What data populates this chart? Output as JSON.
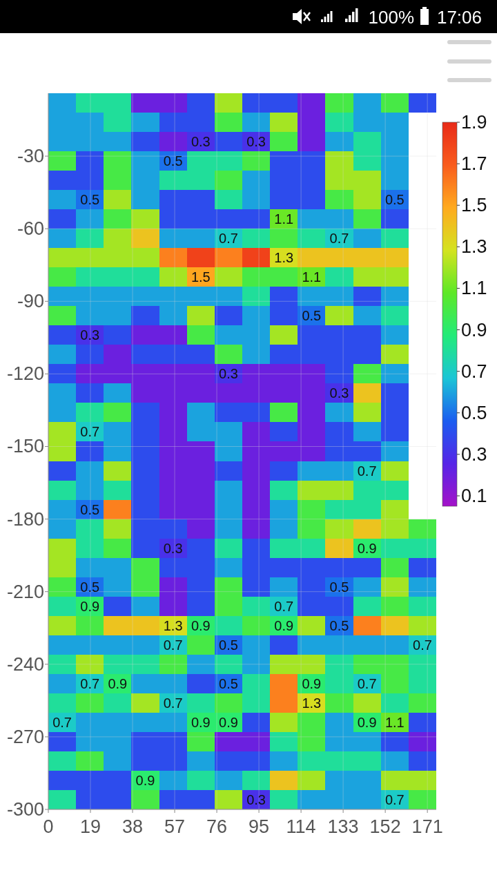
{
  "chart_data": {
    "type": "heatmap",
    "xlim": [
      0,
      175
    ],
    "xticks": [
      0,
      19,
      38,
      57,
      76,
      95,
      114,
      133,
      152,
      171
    ],
    "ylim": [
      -300,
      -4
    ],
    "yticks": [
      -30,
      -60,
      -90,
      -120,
      -150,
      -180,
      -210,
      -240,
      -270,
      -300
    ],
    "clim": [
      0.05,
      1.9
    ],
    "cticks": [
      0.1,
      0.3,
      0.5,
      0.7,
      0.9,
      1.1,
      1.3,
      1.5,
      1.7,
      1.9
    ],
    "colors": [
      "#a412c8",
      "#5625e7",
      "#1b5df0",
      "#1bc5d6",
      "#23eb79",
      "#5de827",
      "#d4e320",
      "#ffaa1f",
      "#f95c1d",
      "#e82a18"
    ],
    "grid": true,
    "cells": [
      [
        0.6,
        0.8,
        0.8,
        0.2,
        0.2,
        0.4,
        1.2,
        0.4,
        0.4,
        0.2,
        1.0,
        0.6,
        1.0,
        0.4
      ],
      [
        0.6,
        0.6,
        0.8,
        0.6,
        0.4,
        0.4,
        1.0,
        0.6,
        1.2,
        0.2,
        0.8,
        0.6,
        0.6,
        null
      ],
      [
        0.6,
        0.6,
        0.6,
        0.4,
        0.2,
        0.3,
        0.4,
        0.3,
        1.0,
        0.2,
        0.6,
        0.8,
        0.6,
        null
      ],
      [
        1.0,
        0.4,
        1.0,
        0.6,
        0.5,
        0.8,
        0.8,
        1.0,
        0.4,
        0.4,
        1.2,
        0.8,
        0.6,
        null
      ],
      [
        0.4,
        0.4,
        1.0,
        0.6,
        0.8,
        0.8,
        1.0,
        0.6,
        0.4,
        0.4,
        1.2,
        1.2,
        0.6,
        null
      ],
      [
        0.6,
        0.5,
        1.2,
        0.6,
        0.4,
        0.4,
        0.8,
        0.6,
        0.4,
        0.4,
        1.0,
        1.2,
        0.5,
        null
      ],
      [
        0.4,
        0.6,
        1.0,
        1.2,
        0.4,
        0.4,
        0.4,
        0.4,
        1.1,
        0.6,
        0.6,
        1.0,
        0.4,
        null
      ],
      [
        0.6,
        0.8,
        1.2,
        1.4,
        0.6,
        0.6,
        0.7,
        0.8,
        1.0,
        0.8,
        0.7,
        0.6,
        0.8,
        null
      ],
      [
        1.2,
        1.2,
        1.2,
        1.2,
        1.6,
        1.8,
        1.6,
        1.8,
        1.3,
        1.4,
        1.4,
        1.4,
        1.4,
        null
      ],
      [
        1.0,
        0.8,
        0.8,
        0.8,
        1.2,
        1.5,
        1.2,
        1.0,
        1.0,
        1.1,
        0.8,
        1.2,
        1.2,
        null
      ],
      [
        0.6,
        0.6,
        0.6,
        0.6,
        0.6,
        0.6,
        0.6,
        0.8,
        0.4,
        0.6,
        0.6,
        0.4,
        0.6,
        null
      ],
      [
        1.0,
        0.6,
        0.6,
        0.4,
        0.6,
        1.2,
        0.4,
        0.6,
        0.4,
        0.5,
        1.2,
        0.6,
        0.8,
        null
      ],
      [
        0.4,
        0.3,
        0.4,
        0.2,
        0.2,
        1.0,
        0.6,
        0.6,
        1.2,
        0.4,
        0.4,
        0.4,
        0.6,
        null
      ],
      [
        0.6,
        0.4,
        0.2,
        0.4,
        0.4,
        0.4,
        1.0,
        0.6,
        0.4,
        0.4,
        0.4,
        0.4,
        1.2,
        null
      ],
      [
        0.4,
        0.2,
        0.2,
        0.2,
        0.2,
        0.2,
        0.3,
        0.2,
        0.2,
        0.2,
        0.4,
        1.0,
        0.6,
        null
      ],
      [
        0.6,
        0.4,
        0.6,
        0.2,
        0.2,
        0.2,
        0.2,
        0.2,
        0.2,
        0.2,
        0.3,
        1.4,
        0.4,
        null
      ],
      [
        0.6,
        0.8,
        1.0,
        0.4,
        0.2,
        0.6,
        0.4,
        0.4,
        1.0,
        0.2,
        0.6,
        1.2,
        0.4,
        null
      ],
      [
        1.2,
        0.7,
        0.6,
        0.4,
        0.2,
        0.6,
        0.6,
        0.2,
        0.4,
        0.2,
        0.4,
        0.6,
        0.4,
        null
      ],
      [
        1.2,
        0.4,
        0.6,
        0.4,
        0.2,
        0.2,
        0.6,
        0.2,
        0.2,
        0.2,
        0.4,
        0.4,
        0.6,
        null
      ],
      [
        0.4,
        0.6,
        1.2,
        0.4,
        0.2,
        0.2,
        0.4,
        0.2,
        0.4,
        0.6,
        0.6,
        0.7,
        1.2,
        null
      ],
      [
        0.8,
        0.6,
        0.8,
        0.4,
        0.2,
        0.2,
        0.6,
        0.2,
        0.8,
        1.2,
        1.2,
        0.8,
        0.8,
        null
      ],
      [
        0.6,
        0.5,
        1.6,
        0.4,
        0.2,
        0.2,
        0.6,
        0.2,
        0.6,
        1.0,
        0.8,
        0.8,
        1.2,
        null
      ],
      [
        0.6,
        0.8,
        1.2,
        0.4,
        0.4,
        0.2,
        0.6,
        0.2,
        0.6,
        1.0,
        1.2,
        1.4,
        1.2,
        1.0
      ],
      [
        1.2,
        0.8,
        1.0,
        0.4,
        0.3,
        0.4,
        0.8,
        0.4,
        0.8,
        0.8,
        1.4,
        0.9,
        0.8,
        0.8
      ],
      [
        1.2,
        0.6,
        0.6,
        1.0,
        0.4,
        0.4,
        0.6,
        0.4,
        0.4,
        0.4,
        0.4,
        0.4,
        1.0,
        0.4
      ],
      [
        1.0,
        0.5,
        0.6,
        1.0,
        0.2,
        0.4,
        1.0,
        0.4,
        0.6,
        0.4,
        0.5,
        0.6,
        1.2,
        0.6
      ],
      [
        0.8,
        0.9,
        0.4,
        0.6,
        0.2,
        0.4,
        1.0,
        0.8,
        0.7,
        0.4,
        0.4,
        0.8,
        1.0,
        0.8
      ],
      [
        1.2,
        1.0,
        1.4,
        1.4,
        1.3,
        0.9,
        0.8,
        1.0,
        0.9,
        1.2,
        0.5,
        1.6,
        1.4,
        1.2
      ],
      [
        0.6,
        0.6,
        0.6,
        0.6,
        0.7,
        1.0,
        0.5,
        0.6,
        0.4,
        0.6,
        0.6,
        0.6,
        0.6,
        0.7
      ],
      [
        0.8,
        1.2,
        0.8,
        0.8,
        1.0,
        0.6,
        0.8,
        0.6,
        1.2,
        1.2,
        0.8,
        1.0,
        1.0,
        0.8
      ],
      [
        0.6,
        0.7,
        0.9,
        0.6,
        0.6,
        0.4,
        0.5,
        0.8,
        1.6,
        0.9,
        0.8,
        0.7,
        1.0,
        0.8
      ],
      [
        0.8,
        1.0,
        0.8,
        1.2,
        0.7,
        0.8,
        1.0,
        0.8,
        1.6,
        1.3,
        1.0,
        1.2,
        0.8,
        1.0
      ],
      [
        0.7,
        0.6,
        0.6,
        0.6,
        0.6,
        0.9,
        0.9,
        0.4,
        1.2,
        1.0,
        0.6,
        0.9,
        1.1,
        0.4
      ],
      [
        0.4,
        0.6,
        0.6,
        0.4,
        0.4,
        1.0,
        0.2,
        0.2,
        0.8,
        1.0,
        0.6,
        0.6,
        0.4,
        0.2
      ],
      [
        0.8,
        1.0,
        0.6,
        0.4,
        0.4,
        0.6,
        0.4,
        0.4,
        0.6,
        0.8,
        0.8,
        0.8,
        0.6,
        0.4
      ],
      [
        0.4,
        0.4,
        0.4,
        0.9,
        0.6,
        0.8,
        0.6,
        0.8,
        1.4,
        1.2,
        0.6,
        0.6,
        1.2,
        1.2
      ],
      [
        0.8,
        0.4,
        0.4,
        1.0,
        0.4,
        0.4,
        1.2,
        0.3,
        0.8,
        0.6,
        0.6,
        0.6,
        0.7,
        1.0
      ]
    ],
    "cell_labels": [
      [
        null,
        null,
        null,
        null,
        null,
        null,
        null,
        null,
        null,
        null,
        null,
        null,
        null,
        null
      ],
      [
        null,
        null,
        null,
        null,
        null,
        null,
        null,
        null,
        null,
        null,
        null,
        null,
        null,
        null
      ],
      [
        null,
        null,
        null,
        null,
        null,
        "0.3",
        null,
        "0.3",
        null,
        null,
        null,
        null,
        null,
        null
      ],
      [
        null,
        null,
        null,
        null,
        "0.5",
        null,
        null,
        null,
        null,
        null,
        null,
        null,
        null,
        null
      ],
      [
        null,
        null,
        null,
        null,
        null,
        null,
        null,
        null,
        null,
        null,
        null,
        null,
        null,
        null
      ],
      [
        null,
        "0.5",
        null,
        null,
        null,
        null,
        null,
        null,
        null,
        null,
        null,
        null,
        "0.5",
        null
      ],
      [
        null,
        null,
        null,
        null,
        null,
        null,
        null,
        null,
        "1.1",
        null,
        null,
        null,
        null,
        null
      ],
      [
        null,
        null,
        null,
        null,
        null,
        null,
        "0.7",
        null,
        null,
        null,
        "0.7",
        null,
        null,
        null
      ],
      [
        null,
        null,
        null,
        null,
        null,
        null,
        null,
        null,
        "1.3",
        null,
        null,
        null,
        null,
        null
      ],
      [
        null,
        null,
        null,
        null,
        null,
        "1.5",
        null,
        null,
        null,
        "1.1",
        null,
        null,
        null,
        null
      ],
      [
        null,
        null,
        null,
        null,
        null,
        null,
        null,
        null,
        null,
        null,
        null,
        null,
        null,
        null
      ],
      [
        null,
        null,
        null,
        null,
        null,
        null,
        null,
        null,
        null,
        "0.5",
        null,
        null,
        null,
        null
      ],
      [
        null,
        "0.3",
        null,
        null,
        null,
        null,
        null,
        null,
        null,
        null,
        null,
        null,
        null,
        null
      ],
      [
        null,
        null,
        null,
        null,
        null,
        null,
        null,
        null,
        null,
        null,
        null,
        null,
        null,
        null
      ],
      [
        null,
        null,
        null,
        null,
        null,
        null,
        "0.3",
        null,
        null,
        null,
        null,
        null,
        null,
        null
      ],
      [
        null,
        null,
        null,
        null,
        null,
        null,
        null,
        null,
        null,
        null,
        "0.3",
        null,
        null,
        null
      ],
      [
        null,
        null,
        null,
        null,
        null,
        null,
        null,
        null,
        null,
        null,
        null,
        null,
        null,
        null
      ],
      [
        null,
        "0.7",
        null,
        null,
        null,
        null,
        null,
        null,
        null,
        null,
        null,
        null,
        null,
        null
      ],
      [
        null,
        null,
        null,
        null,
        null,
        null,
        null,
        null,
        null,
        null,
        null,
        null,
        null,
        null
      ],
      [
        null,
        null,
        null,
        null,
        null,
        null,
        null,
        null,
        null,
        null,
        null,
        "0.7",
        null,
        null
      ],
      [
        null,
        null,
        null,
        null,
        null,
        null,
        null,
        null,
        null,
        null,
        null,
        null,
        null,
        null
      ],
      [
        null,
        "0.5",
        null,
        null,
        null,
        null,
        null,
        null,
        null,
        null,
        null,
        null,
        null,
        null
      ],
      [
        null,
        null,
        null,
        null,
        null,
        null,
        null,
        null,
        null,
        null,
        null,
        null,
        null,
        null
      ],
      [
        null,
        null,
        null,
        null,
        "0.3",
        null,
        null,
        null,
        null,
        null,
        null,
        "0.9",
        null,
        null
      ],
      [
        null,
        null,
        null,
        null,
        null,
        null,
        null,
        null,
        null,
        null,
        null,
        null,
        null,
        null
      ],
      [
        null,
        "0.5",
        null,
        null,
        null,
        null,
        null,
        null,
        null,
        null,
        "0.5",
        null,
        null,
        null
      ],
      [
        null,
        "0.9",
        null,
        null,
        null,
        null,
        null,
        null,
        "0.7",
        null,
        null,
        null,
        null,
        null
      ],
      [
        null,
        null,
        null,
        null,
        "1.3",
        "0.9",
        null,
        null,
        "0.9",
        null,
        "0.5",
        null,
        null,
        null
      ],
      [
        null,
        null,
        null,
        null,
        "0.7",
        null,
        "0.5",
        null,
        null,
        null,
        null,
        null,
        null,
        "0.7"
      ],
      [
        null,
        null,
        null,
        null,
        null,
        null,
        null,
        null,
        null,
        null,
        null,
        null,
        null,
        null
      ],
      [
        null,
        "0.7",
        "0.9",
        null,
        null,
        null,
        "0.5",
        null,
        null,
        "0.9",
        null,
        "0.7",
        null,
        null
      ],
      [
        null,
        null,
        null,
        null,
        "0.7",
        null,
        null,
        null,
        null,
        "1.3",
        null,
        null,
        null,
        null
      ],
      [
        "0.7",
        null,
        null,
        null,
        null,
        "0.9",
        "0.9",
        null,
        null,
        null,
        null,
        "0.9",
        "1.1",
        null
      ],
      [
        null,
        null,
        null,
        null,
        null,
        null,
        null,
        null,
        null,
        null,
        null,
        null,
        null,
        null
      ],
      [
        null,
        null,
        null,
        null,
        null,
        null,
        null,
        null,
        null,
        null,
        null,
        null,
        null,
        null
      ],
      [
        null,
        null,
        null,
        "0.9",
        null,
        null,
        null,
        null,
        null,
        null,
        null,
        null,
        null,
        null
      ],
      [
        null,
        null,
        null,
        null,
        null,
        null,
        null,
        "0.3",
        null,
        null,
        null,
        null,
        "0.7",
        null
      ]
    ],
    "annotations": [
      "100%",
      "17:06"
    ]
  }
}
